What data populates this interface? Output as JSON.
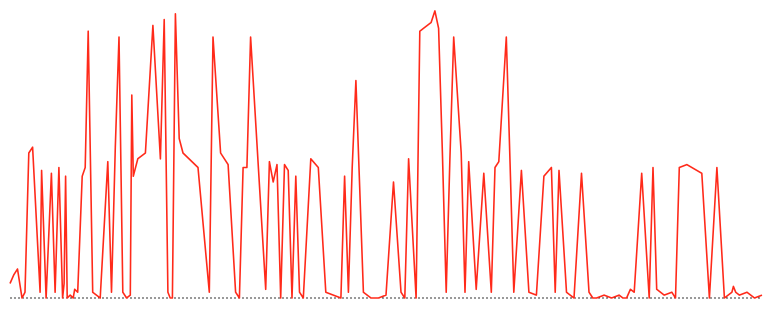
{
  "chart_data": {
    "type": "line",
    "title": "",
    "xlabel": "",
    "ylabel": "",
    "grid": false,
    "legend": "none",
    "colors": {
      "series": "#ff2a1a",
      "baseline": "#333333"
    },
    "baseline": 0,
    "ylim": [
      -0.1,
      1.0
    ],
    "series": [
      {
        "name": "",
        "x": [
          0,
          0.005,
          0.01,
          0.016,
          0.02,
          0.025,
          0.03,
          0.04,
          0.042,
          0.048,
          0.055,
          0.06,
          0.065,
          0.07,
          0.072,
          0.074,
          0.076,
          0.08,
          0.084,
          0.086,
          0.09,
          0.096,
          0.1,
          0.104,
          0.11,
          0.12,
          0.13,
          0.135,
          0.14,
          0.145,
          0.15,
          0.155,
          0.16,
          0.162,
          0.164,
          0.17,
          0.18,
          0.19,
          0.2,
          0.205,
          0.21,
          0.213,
          0.216,
          0.22,
          0.225,
          0.23,
          0.25,
          0.265,
          0.27,
          0.28,
          0.29,
          0.3,
          0.305,
          0.31,
          0.315,
          0.32,
          0.33,
          0.34,
          0.345,
          0.35,
          0.355,
          0.36,
          0.365,
          0.37,
          0.375,
          0.38,
          0.385,
          0.39,
          0.4,
          0.41,
          0.42,
          0.44,
          0.445,
          0.45,
          0.455,
          0.46,
          0.47,
          0.48,
          0.49,
          0.5,
          0.51,
          0.52,
          0.525,
          0.53,
          0.54,
          0.545,
          0.55,
          0.56,
          0.565,
          0.57,
          0.575,
          0.58,
          0.585,
          0.59,
          0.6,
          0.605,
          0.61,
          0.62,
          0.63,
          0.64,
          0.645,
          0.65,
          0.66,
          0.665,
          0.67,
          0.68,
          0.69,
          0.7,
          0.71,
          0.72,
          0.725,
          0.73,
          0.74,
          0.745,
          0.75,
          0.76,
          0.77,
          0.775,
          0.78,
          0.79,
          0.8,
          0.81,
          0.815,
          0.82,
          0.825,
          0.83,
          0.84,
          0.85,
          0.855,
          0.86,
          0.87,
          0.88,
          0.885,
          0.89,
          0.9,
          0.92,
          0.93,
          0.94,
          0.95,
          0.96,
          0.962,
          0.965,
          0.97,
          0.98,
          0.99,
          1.0
        ],
        "y": [
          0.05,
          0.08,
          0.1,
          0.0,
          0.02,
          0.5,
          0.52,
          0.02,
          0.44,
          0.0,
          0.43,
          0.02,
          0.45,
          0.0,
          0.05,
          0.42,
          0.0,
          0.01,
          0.0,
          0.03,
          0.02,
          0.42,
          0.45,
          0.92,
          0.02,
          0.0,
          0.47,
          0.02,
          0.52,
          0.9,
          0.02,
          0.0,
          0.01,
          0.7,
          0.42,
          0.48,
          0.5,
          0.94,
          0.48,
          0.96,
          0.02,
          0.0,
          0.0,
          0.98,
          0.55,
          0.5,
          0.45,
          0.02,
          0.9,
          0.5,
          0.46,
          0.02,
          0.0,
          0.45,
          0.45,
          0.9,
          0.46,
          0.03,
          0.47,
          0.4,
          0.46,
          0.0,
          0.46,
          0.44,
          0.0,
          0.42,
          0.02,
          0.0,
          0.48,
          0.45,
          0.02,
          0.0,
          0.42,
          0.02,
          0.45,
          0.75,
          0.02,
          0.0,
          0.0,
          0.01,
          0.4,
          0.02,
          0.0,
          0.48,
          0.0,
          0.92,
          0.93,
          0.95,
          0.99,
          0.93,
          0.5,
          0.02,
          0.48,
          0.9,
          0.5,
          0.02,
          0.47,
          0.03,
          0.43,
          0.02,
          0.45,
          0.47,
          0.9,
          0.46,
          0.02,
          0.44,
          0.02,
          0.01,
          0.42,
          0.45,
          0.02,
          0.44,
          0.02,
          0.01,
          0.0,
          0.43,
          0.02,
          0.0,
          0.0,
          0.01,
          0.0,
          0.01,
          0.0,
          0.0,
          0.03,
          0.02,
          0.43,
          0.0,
          0.45,
          0.03,
          0.01,
          0.02,
          0.0,
          0.45,
          0.46,
          0.43,
          0.0,
          0.45,
          0.0,
          0.02,
          0.04,
          0.02,
          0.01,
          0.02,
          0.0,
          0.01
        ]
      }
    ]
  }
}
